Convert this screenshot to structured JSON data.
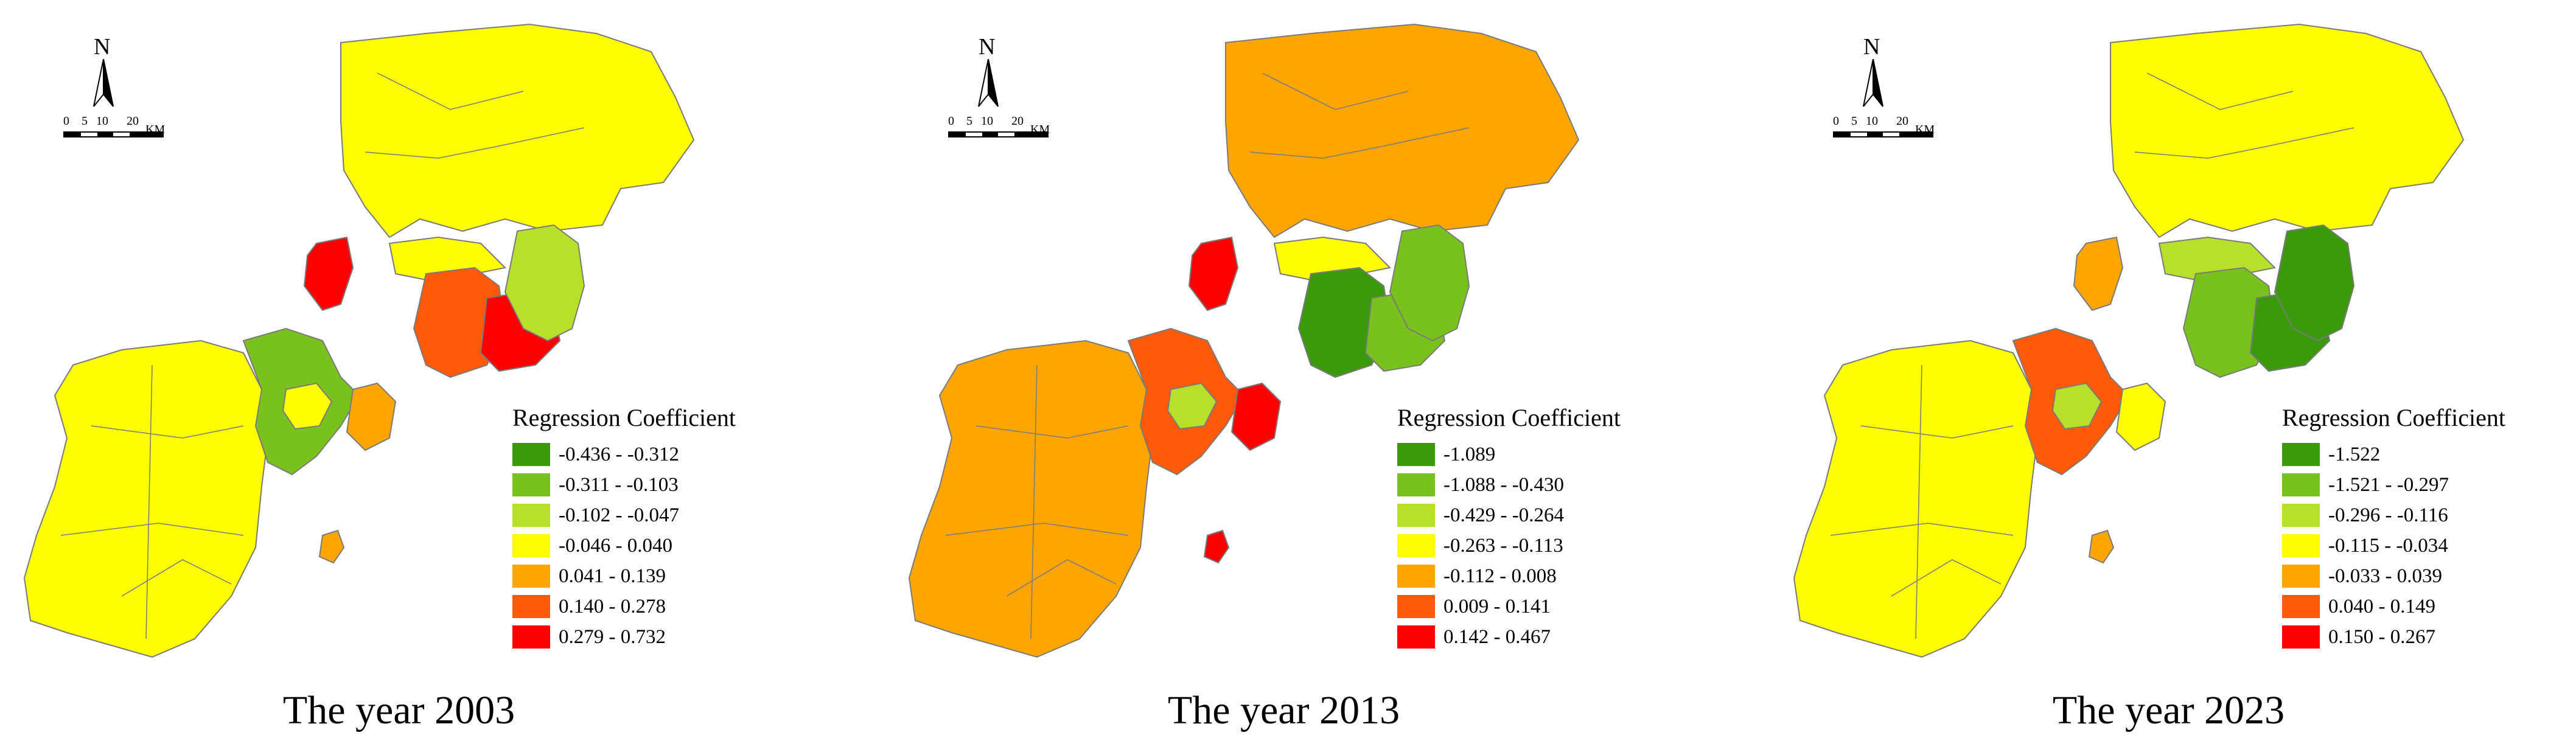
{
  "colors": {
    "c1": "#3a9a0c",
    "c2": "#79c11c",
    "c3": "#b8e02a",
    "c4": "#ffff00",
    "c5": "#ffa500",
    "c6": "#ff5a0a",
    "c7": "#ff0000",
    "border": "#7a7a7a"
  },
  "panels": [
    {
      "caption": "The year 2003",
      "north": "N",
      "scale": {
        "ticks": [
          "0",
          "5",
          "10",
          "20"
        ],
        "unit": "KM"
      },
      "legend": {
        "title": "Regression Coefficient",
        "classes": [
          {
            "label": "-0.436 - -0.312",
            "color": "#3a9a0c"
          },
          {
            "label": "-0.311 - -0.103",
            "color": "#79c11c"
          },
          {
            "label": "-0.102 - -0.047",
            "color": "#b8e02a"
          },
          {
            "label": "-0.046 - 0.040",
            "color": "#ffff00"
          },
          {
            "label": "0.041 - 0.139",
            "color": "#ffa500"
          },
          {
            "label": "0.140 - 0.278",
            "color": "#ff5a0a"
          },
          {
            "label": "0.279 - 0.732",
            "color": "#ff0000"
          }
        ]
      },
      "map_class": {
        "north": 4,
        "west": 4,
        "mid": 2,
        "east": 3,
        "coast_west": 7,
        "south_core": 6,
        "south_east": 7,
        "center": 4,
        "isle_big": 5,
        "isle_small": 5,
        "enclave": 4
      }
    },
    {
      "caption": "The year 2013",
      "north": "N",
      "scale": {
        "ticks": [
          "0",
          "5",
          "10",
          "20"
        ],
        "unit": "KM"
      },
      "legend": {
        "title": "Regression Coefficient",
        "classes": [
          {
            "label": "-1.089",
            "color": "#3a9a0c"
          },
          {
            "label": "-1.088 - -0.430",
            "color": "#79c11c"
          },
          {
            "label": "-0.429 - -0.264",
            "color": "#b8e02a"
          },
          {
            "label": "-0.263 - -0.113",
            "color": "#ffff00"
          },
          {
            "label": "-0.112 - 0.008",
            "color": "#ffa500"
          },
          {
            "label": "0.009 - 0.141",
            "color": "#ff5a0a"
          },
          {
            "label": "0.142 - 0.467",
            "color": "#ff0000"
          }
        ]
      },
      "map_class": {
        "north": 5,
        "west": 5,
        "mid": 6,
        "east": 2,
        "coast_west": 7,
        "south_core": 1,
        "south_east": 2,
        "center": 4,
        "isle_big": 7,
        "isle_small": 7,
        "enclave": 3
      }
    },
    {
      "caption": "The year 2023",
      "north": "N",
      "scale": {
        "ticks": [
          "0",
          "5",
          "10",
          "20"
        ],
        "unit": "KM"
      },
      "legend": {
        "title": "Regression Coefficient",
        "classes": [
          {
            "label": "-1.522",
            "color": "#3a9a0c"
          },
          {
            "label": "-1.521 - -0.297",
            "color": "#79c11c"
          },
          {
            "label": "-0.296 - -0.116",
            "color": "#b8e02a"
          },
          {
            "label": "-0.115 - -0.034",
            "color": "#ffff00"
          },
          {
            "label": "-0.033 - 0.039",
            "color": "#ffa500"
          },
          {
            "label": "0.040 - 0.149",
            "color": "#ff5a0a"
          },
          {
            "label": "0.150 - 0.267",
            "color": "#ff0000"
          }
        ]
      },
      "map_class": {
        "north": 4,
        "west": 4,
        "mid": 6,
        "east": 1,
        "coast_west": 5,
        "south_core": 2,
        "south_east": 1,
        "center": 3,
        "isle_big": 4,
        "isle_small": 5,
        "enclave": 3
      }
    }
  ]
}
